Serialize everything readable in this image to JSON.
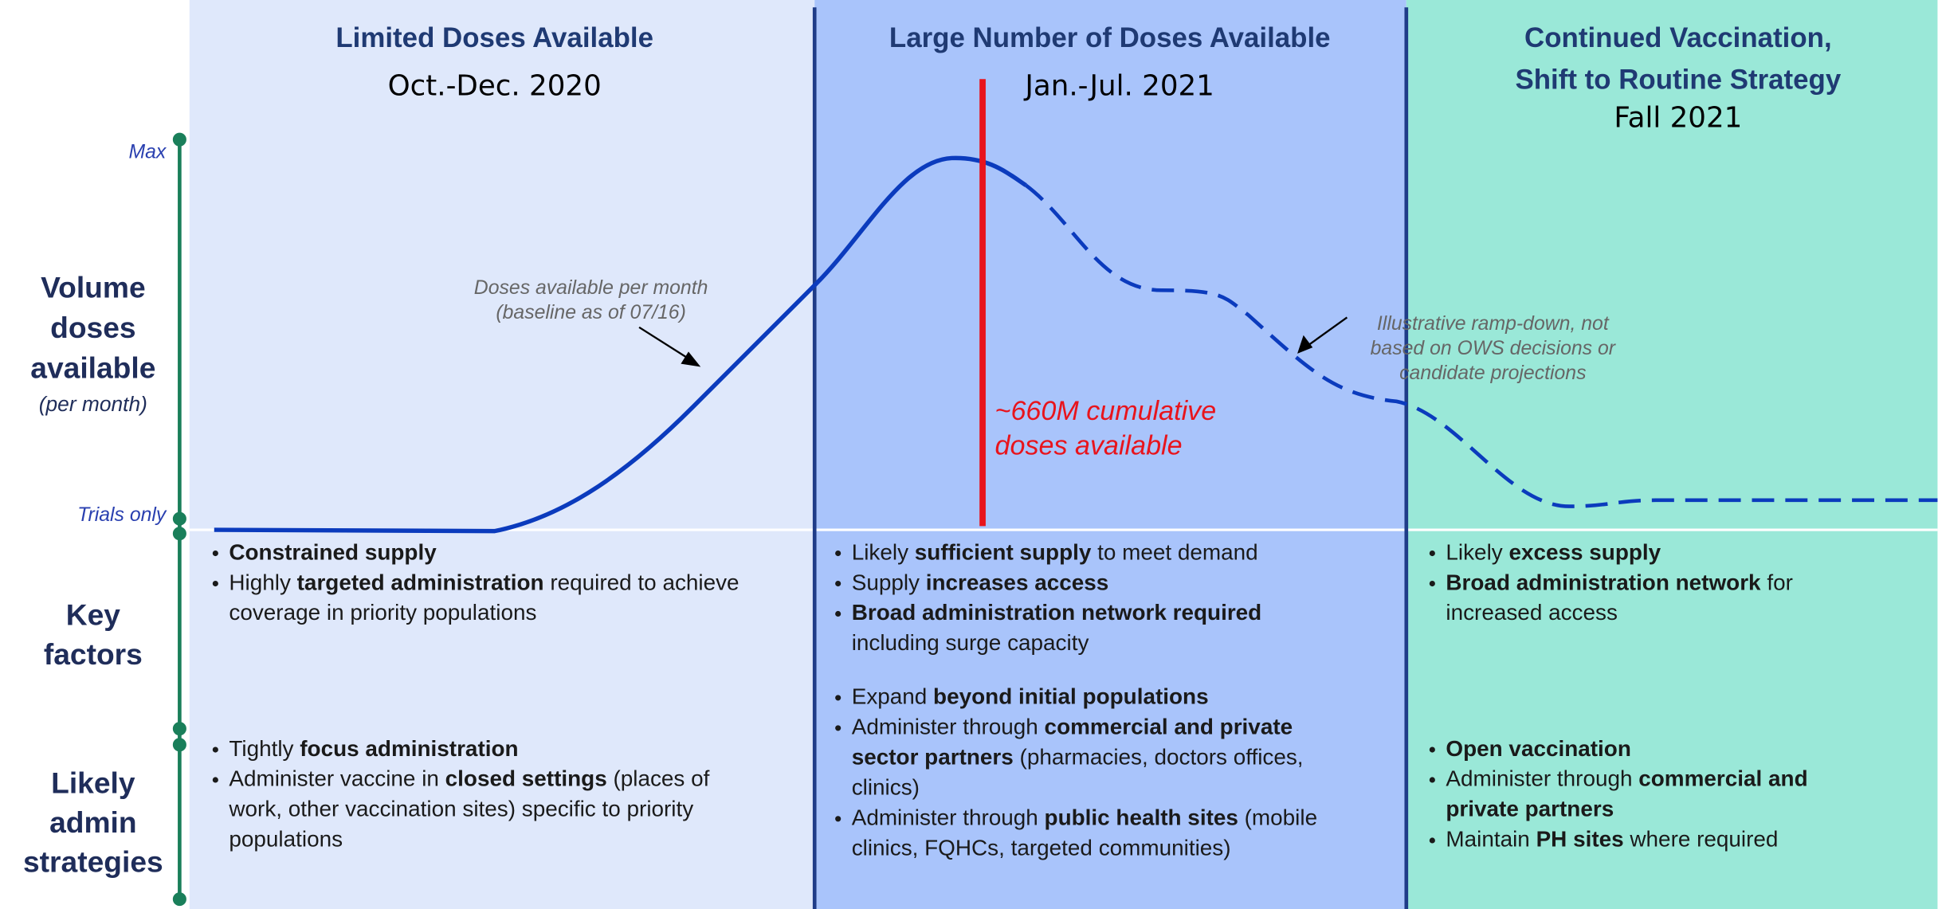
{
  "axis": {
    "max": "Max",
    "min": "Trials only"
  },
  "rows": [
    {
      "label_lines": [
        "Volume",
        "doses",
        "available"
      ],
      "sublabel": "(per month)"
    },
    {
      "label_lines": [
        "Key",
        "factors"
      ]
    },
    {
      "label_lines": [
        "Likely",
        "admin",
        "strategies"
      ]
    }
  ],
  "columns": [
    {
      "title_lines": [
        "Limited Doses Available"
      ],
      "period": "Oct.-Dec. 2020",
      "factors": [
        [
          [
            {
              "text": "Constrained supply",
              "bold": true
            }
          ]
        ],
        [
          [
            "Highly ",
            {
              "text": "targeted administration",
              "bold": true
            },
            " required to achieve"
          ],
          [
            "coverage in priority populations"
          ]
        ]
      ],
      "strategies": [
        [
          [
            "Tightly ",
            {
              "text": "focus administration",
              "bold": true
            }
          ]
        ],
        [
          [
            "Administer vaccine in ",
            {
              "text": "closed settings",
              "bold": true
            },
            " (places of"
          ],
          [
            "work, other vaccination sites) specific to priority"
          ],
          [
            "populations"
          ]
        ]
      ]
    },
    {
      "title_lines": [
        "Large Number of Doses Available"
      ],
      "period": "Jan.-Jul. 2021",
      "factors": [
        [
          [
            "Likely ",
            {
              "text": "sufficient supply",
              "bold": true
            },
            " to meet demand"
          ]
        ],
        [
          [
            "Supply ",
            {
              "text": "increases access",
              "bold": true
            }
          ]
        ],
        [
          [
            {
              "text": "Broad administration network required",
              "bold": true
            }
          ],
          [
            "including surge capacity"
          ]
        ]
      ],
      "strategies": [
        [
          [
            "Expand ",
            {
              "text": "beyond initial populations",
              "bold": true
            }
          ]
        ],
        [
          [
            "Administer through ",
            {
              "text": "commercial and private",
              "bold": true
            }
          ],
          [
            {
              "text": "sector partners",
              "bold": true
            },
            " (pharmacies, doctors offices,"
          ],
          [
            "clinics)"
          ]
        ],
        [
          [
            "Administer through ",
            {
              "text": "public health sites",
              "bold": true
            },
            " (mobile"
          ],
          [
            "clinics, FQHCs, targeted communities)"
          ]
        ]
      ]
    },
    {
      "title_lines": [
        "Continued Vaccination,",
        "Shift to Routine Strategy"
      ],
      "period": "Fall 2021",
      "factors": [
        [
          [
            "Likely ",
            {
              "text": "excess supply",
              "bold": true
            }
          ]
        ],
        [
          [
            {
              "text": "Broad administration network",
              "bold": true
            },
            " for"
          ],
          [
            "increased access"
          ]
        ]
      ],
      "strategies": [
        [
          [
            {
              "text": "Open vaccination",
              "bold": true
            }
          ]
        ],
        [
          [
            "Administer through ",
            {
              "text": "commercial and",
              "bold": true
            }
          ],
          [
            {
              "text": "private partners",
              "bold": true
            }
          ]
        ],
        [
          [
            "Maintain ",
            {
              "text": "PH sites",
              "bold": true
            },
            " where required"
          ]
        ]
      ]
    }
  ],
  "annotations": {
    "baseline": [
      "Doses available per month",
      "(baseline as of 07/16)"
    ],
    "ramp_down": [
      "Illustrative ramp-down, not",
      "based on OWS decisions or",
      "candidate projections"
    ],
    "cumulative": [
      "~660M cumulative",
      "doses available"
    ]
  }
}
